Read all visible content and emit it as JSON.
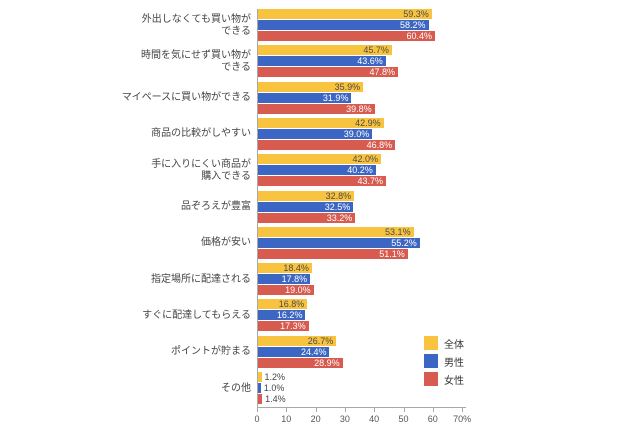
{
  "chart_data": {
    "type": "bar",
    "orientation": "horizontal",
    "title": "",
    "xlabel": "",
    "ylabel": "",
    "xlim": [
      0,
      70
    ],
    "x_ticks": [
      "0",
      "10",
      "20",
      "30",
      "40",
      "50",
      "60",
      "70%"
    ],
    "grid": false,
    "legend_position": "right-bottom",
    "value_suffix": "%",
    "categories": [
      "外出しなくても買い物が\nできる",
      "時間を気にせず買い物が\nできる",
      "マイペースに買い物ができる",
      "商品の比較がしやすい",
      "手に入りにくい商品が\n購入できる",
      "品ぞろえが豊富",
      "価格が安い",
      "指定場所に配達される",
      "すぐに配達してもらえる",
      "ポイントが貯まる",
      "その他"
    ],
    "series": [
      {
        "name": "全体",
        "color": "#F8C440",
        "label_color": "#4a4a4a",
        "values": [
          59.3,
          45.7,
          35.9,
          42.9,
          42.0,
          32.8,
          53.1,
          18.4,
          16.8,
          26.7,
          1.2
        ]
      },
      {
        "name": "男性",
        "color": "#3B66C4",
        "label_color": "#ffffff",
        "values": [
          58.2,
          43.6,
          31.9,
          39.0,
          40.2,
          32.5,
          55.2,
          17.8,
          16.2,
          24.4,
          1.0
        ]
      },
      {
        "name": "女性",
        "color": "#D75B4F",
        "label_color": "#ffffff",
        "values": [
          60.4,
          47.8,
          39.8,
          46.8,
          43.7,
          33.2,
          51.1,
          19.0,
          17.3,
          28.9,
          1.4
        ]
      }
    ]
  },
  "colors": {
    "axis": "#a9a9a9",
    "tick_text": "#555555",
    "category_text": "#444444",
    "background": "#ffffff"
  }
}
